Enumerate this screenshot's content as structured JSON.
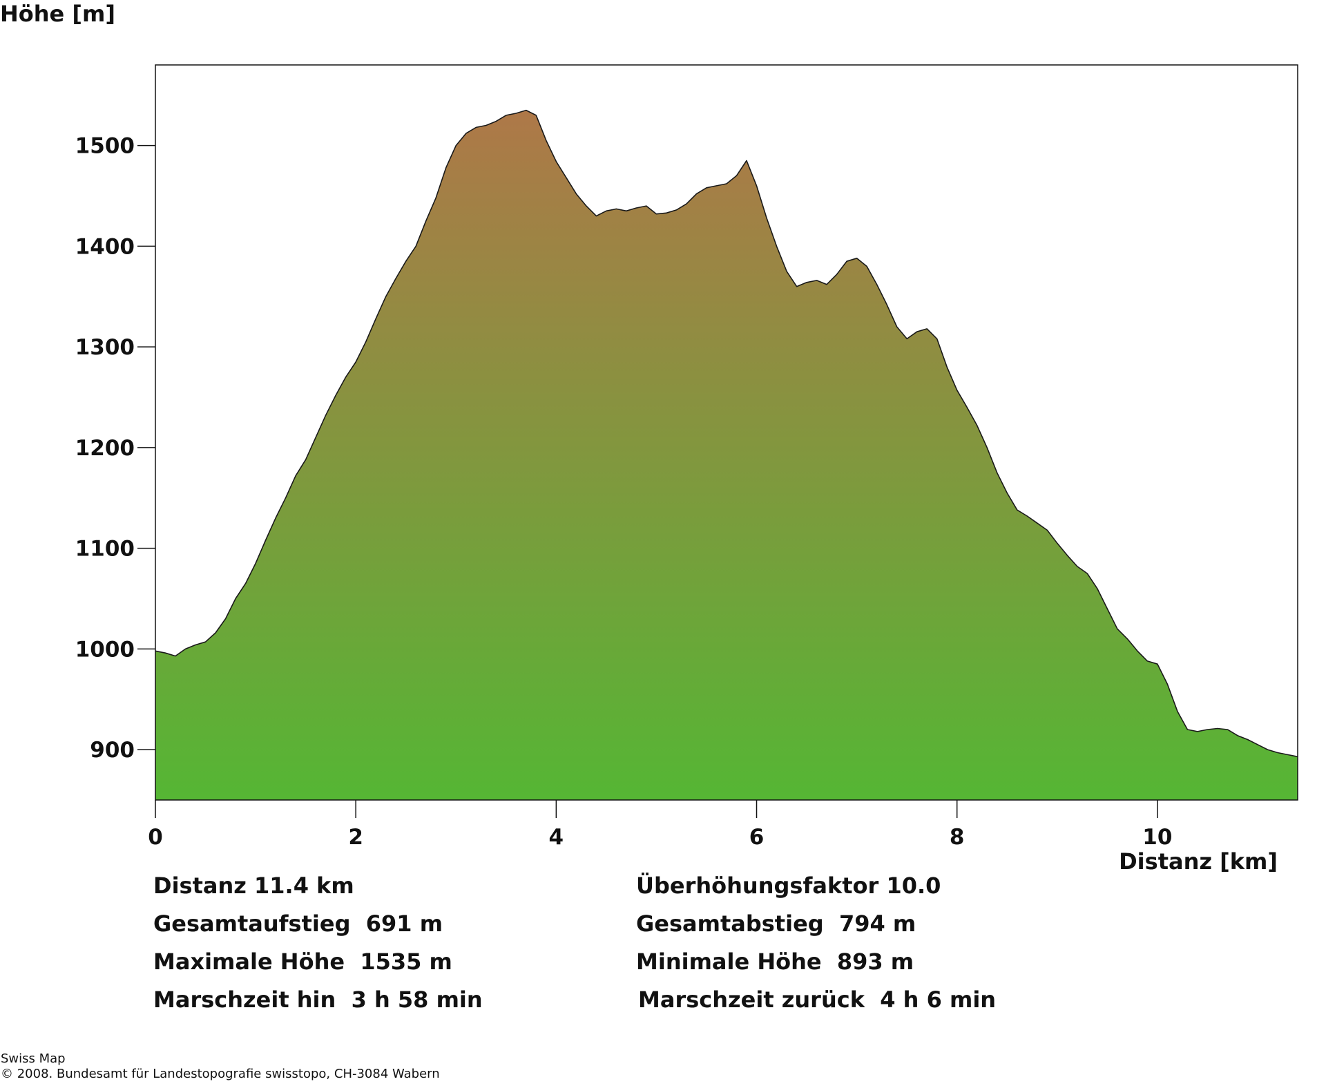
{
  "chart_data": {
    "type": "area",
    "title": "",
    "ylabel": "Höhe [m]",
    "xlabel": "Distanz [km]",
    "xlim": [
      0,
      11.4
    ],
    "ylim": [
      850,
      1580
    ],
    "x_ticks": [
      0,
      2,
      4,
      6,
      8,
      10
    ],
    "x_tick_labels": [
      "0",
      "2",
      "4",
      "6",
      "8",
      "10"
    ],
    "y_ticks": [
      900,
      1000,
      1100,
      1200,
      1300,
      1400,
      1500
    ],
    "y_tick_labels": [
      "900",
      "1000",
      "1100",
      "1200",
      "1300",
      "1400",
      "1500"
    ],
    "grid": false,
    "legend": "none",
    "colors": {
      "fill_top": "#ae7848",
      "fill_bottom": "#55b634",
      "outline": "#1a1a1a",
      "frame": "#111111"
    },
    "series": [
      {
        "x": [
          0,
          0.1,
          0.2,
          0.3,
          0.4,
          0.5,
          0.6,
          0.7,
          0.8,
          0.9,
          1.0,
          1.1,
          1.2,
          1.3,
          1.4,
          1.5,
          1.6,
          1.7,
          1.8,
          1.9,
          2.0,
          2.1,
          2.2,
          2.3,
          2.4,
          2.5,
          2.6,
          2.7,
          2.8,
          2.9,
          3.0,
          3.1,
          3.2,
          3.3,
          3.4,
          3.5,
          3.6,
          3.7,
          3.8,
          3.9,
          4.0,
          4.1,
          4.2,
          4.3,
          4.4,
          4.5,
          4.6,
          4.7,
          4.8,
          4.9,
          5.0,
          5.1,
          5.2,
          5.3,
          5.4,
          5.5,
          5.6,
          5.7,
          5.8,
          5.9,
          6.0,
          6.1,
          6.2,
          6.3,
          6.4,
          6.5,
          6.6,
          6.7,
          6.8,
          6.9,
          7.0,
          7.1,
          7.2,
          7.3,
          7.4,
          7.5,
          7.6,
          7.7,
          7.8,
          7.9,
          8.0,
          8.1,
          8.2,
          8.3,
          8.4,
          8.5,
          8.6,
          8.7,
          8.8,
          8.9,
          9.0,
          9.1,
          9.2,
          9.3,
          9.4,
          9.5,
          9.6,
          9.7,
          9.8,
          9.9,
          10.0,
          10.1,
          10.2,
          10.3,
          10.4,
          10.5,
          10.6,
          10.7,
          10.8,
          10.9,
          11.0,
          11.1,
          11.2,
          11.3,
          11.4
        ],
        "y": [
          998,
          996,
          993,
          1000,
          1004,
          1007,
          1016,
          1030,
          1050,
          1065,
          1085,
          1108,
          1130,
          1150,
          1172,
          1188,
          1210,
          1232,
          1252,
          1270,
          1285,
          1305,
          1328,
          1350,
          1368,
          1385,
          1400,
          1425,
          1448,
          1478,
          1500,
          1512,
          1518,
          1520,
          1524,
          1530,
          1532,
          1535,
          1530,
          1505,
          1484,
          1468,
          1452,
          1440,
          1430,
          1435,
          1437,
          1435,
          1438,
          1440,
          1432,
          1433,
          1436,
          1442,
          1452,
          1458,
          1460,
          1462,
          1470,
          1485,
          1460,
          1428,
          1400,
          1375,
          1360,
          1364,
          1366,
          1362,
          1372,
          1385,
          1388,
          1380,
          1362,
          1342,
          1320,
          1308,
          1315,
          1318,
          1308,
          1280,
          1257,
          1240,
          1222,
          1200,
          1175,
          1155,
          1138,
          1132,
          1125,
          1118,
          1105,
          1093,
          1082,
          1075,
          1060,
          1040,
          1020,
          1010,
          998,
          988,
          985,
          965,
          938,
          920,
          918,
          920,
          921,
          920,
          914,
          910,
          905,
          900,
          897,
          895,
          893
        ]
      }
    ]
  },
  "stats": {
    "distance": "Distanz 11.4 km",
    "exaggeration": "Überhöhungsfaktor 10.0",
    "ascent": "Gesamtaufstieg  691 m",
    "descent": "Gesamtabstieg  794 m",
    "max_height": "Maximale Höhe  1535 m",
    "min_height": "Minimale Höhe  893 m",
    "time_out": "Marschzeit hin  3 h 58 min",
    "time_back": "Marschzeit zurück  4 h 6 min"
  },
  "footer": {
    "line1": "Swiss Map",
    "line2": "© 2008. Bundesamt für Landestopografie swisstopo, CH-3084 Wabern"
  }
}
